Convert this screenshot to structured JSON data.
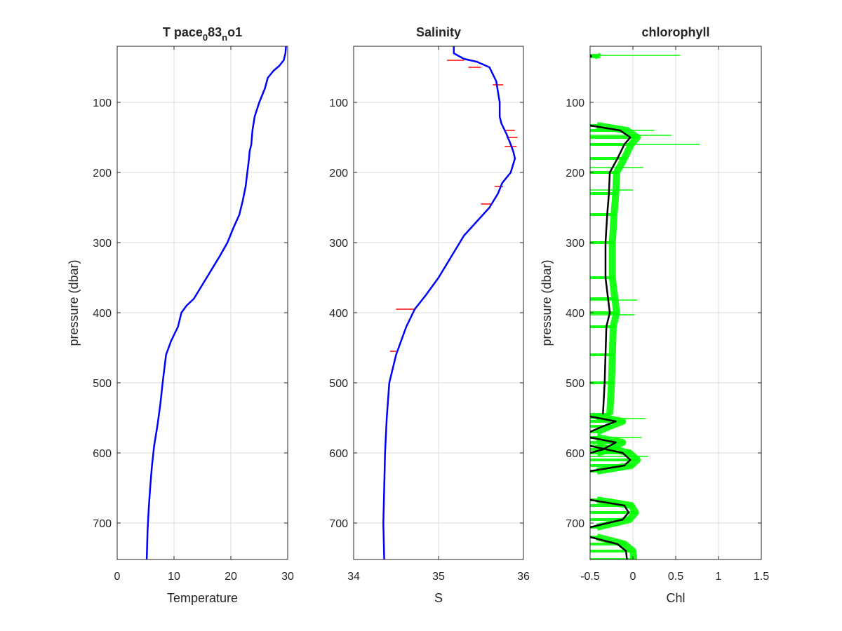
{
  "chart_data": [
    {
      "type": "line",
      "title": "T pace",
      "title_sub1": "0",
      "title_mid": "83",
      "title_sub2": "n",
      "title_end": "o1",
      "xlabel": "Temperature",
      "ylabel": "pressure (dbar)",
      "xlim": [
        0,
        30
      ],
      "ylim": [
        20,
        752
      ],
      "y_reversed": true,
      "grid": true,
      "xticks": [
        0,
        10,
        20,
        30
      ],
      "xtick_labels": [
        "0",
        "10",
        "20",
        "30"
      ],
      "yticks": [
        100,
        200,
        300,
        400,
        500,
        600,
        700
      ],
      "ytick_labels": [
        "100",
        "200",
        "300",
        "400",
        "500",
        "600",
        "700"
      ],
      "colors": {
        "temperature": "#0000ff"
      },
      "series": [
        {
          "x": [
            29.7,
            29.6,
            29.3,
            28.5,
            27.5,
            26.5,
            26.0,
            25.0,
            24.2,
            23.8,
            23.6,
            23.3,
            23.2,
            22.9,
            22.6,
            22.1,
            21.5,
            20.4,
            19.4,
            18.0,
            16.5,
            15.0,
            13.5,
            12.2,
            11.3,
            10.7,
            9.5,
            8.6,
            8.0,
            7.6,
            7.1,
            6.5,
            6.1,
            5.8,
            5.55,
            5.35,
            5.2
          ],
          "y": [
            20,
            30,
            40,
            48,
            55,
            65,
            80,
            100,
            120,
            140,
            160,
            170,
            180,
            200,
            220,
            240,
            260,
            280,
            300,
            320,
            340,
            360,
            380,
            390,
            400,
            420,
            440,
            460,
            500,
            530,
            560,
            590,
            620,
            650,
            680,
            710,
            752
          ]
        }
      ]
    },
    {
      "type": "line",
      "title": "Salinity",
      "xlabel": "S",
      "ylabel": "",
      "xlim": [
        34,
        36
      ],
      "ylim": [
        20,
        752
      ],
      "y_reversed": true,
      "grid": true,
      "xticks": [
        34,
        35,
        36
      ],
      "xtick_labels": [
        "34",
        "35",
        "36"
      ],
      "yticks": [
        100,
        200,
        300,
        400,
        500,
        600,
        700
      ],
      "ytick_labels": [
        "100",
        "200",
        "300",
        "400",
        "500",
        "600",
        "700"
      ],
      "colors": {
        "salinity": "#0000ff",
        "error": "#ff0000"
      },
      "series": [
        {
          "x": [
            35.18,
            35.18,
            35.3,
            35.45,
            35.6,
            35.68,
            35.72,
            35.72,
            35.74,
            35.8,
            35.85,
            35.88,
            35.9,
            35.85,
            35.75,
            35.7,
            35.6,
            35.45,
            35.3,
            35.15,
            35.0,
            34.85,
            34.72,
            34.62,
            34.5,
            34.42,
            34.39,
            34.37,
            34.36,
            34.35,
            34.36
          ],
          "y": [
            20,
            30,
            38,
            42,
            50,
            70,
            100,
            120,
            130,
            145,
            160,
            170,
            180,
            200,
            215,
            230,
            250,
            270,
            290,
            320,
            350,
            375,
            395,
            420,
            460,
            500,
            550,
            600,
            650,
            700,
            752
          ]
        }
      ],
      "error_bars": [
        {
          "y": 40,
          "x_lo": 35.1,
          "x_hi": 35.3
        },
        {
          "y": 50,
          "x_lo": 35.35,
          "x_hi": 35.5
        },
        {
          "y": 75,
          "x_lo": 35.64,
          "x_hi": 35.76
        },
        {
          "y": 140,
          "x_lo": 35.78,
          "x_hi": 35.9
        },
        {
          "y": 150,
          "x_lo": 35.8,
          "x_hi": 35.93
        },
        {
          "y": 163,
          "x_lo": 35.78,
          "x_hi": 35.92
        },
        {
          "y": 220,
          "x_lo": 35.66,
          "x_hi": 35.76
        },
        {
          "y": 245,
          "x_lo": 35.5,
          "x_hi": 35.62
        },
        {
          "y": 395,
          "x_lo": 34.5,
          "x_hi": 34.72
        },
        {
          "y": 455,
          "x_lo": 34.43,
          "x_hi": 34.5
        }
      ]
    },
    {
      "type": "line",
      "title": "chlorophyll",
      "xlabel": "Chl",
      "ylabel": "pressure (dbar)",
      "xlim": [
        -0.5,
        1.5
      ],
      "ylim": [
        20,
        752
      ],
      "y_reversed": true,
      "grid": true,
      "xticks": [
        -0.5,
        0,
        0.5,
        1,
        1.5
      ],
      "xtick_labels": [
        "-0.5",
        "0",
        "0.5",
        "1",
        "1.5"
      ],
      "yticks": [
        100,
        200,
        300,
        400,
        500,
        600,
        700
      ],
      "ytick_labels": [
        "100",
        "200",
        "300",
        "400",
        "500",
        "600",
        "700"
      ],
      "colors": {
        "mean": "#000000",
        "spread": "#00ff00"
      },
      "segments": [
        {
          "y": [
            33,
            35
          ],
          "x": [
            -0.5,
            -0.48
          ]
        },
        {
          "y": [
            133,
            140,
            150,
            160,
            180,
            200,
            230,
            260,
            300,
            350,
            380,
            400,
            420,
            460,
            500,
            545
          ],
          "x": [
            -0.5,
            -0.15,
            -0.03,
            -0.1,
            -0.18,
            -0.27,
            -0.28,
            -0.3,
            -0.32,
            -0.32,
            -0.29,
            -0.27,
            -0.31,
            -0.32,
            -0.33,
            -0.35
          ]
        },
        {
          "y": [
            548,
            555,
            562,
            570
          ],
          "x": [
            -0.5,
            -0.2,
            -0.35,
            -0.5
          ]
        },
        {
          "y": [
            578,
            585,
            595,
            600
          ],
          "x": [
            -0.5,
            -0.2,
            -0.35,
            -0.5
          ]
        },
        {
          "y": [
            590,
            600,
            610,
            618,
            626
          ],
          "x": [
            -0.5,
            -0.12,
            -0.03,
            -0.1,
            -0.5
          ]
        },
        {
          "y": [
            667,
            675,
            685,
            695,
            706
          ],
          "x": [
            -0.5,
            -0.1,
            -0.05,
            -0.12,
            -0.5
          ]
        },
        {
          "y": [
            720,
            730,
            740,
            752
          ],
          "x": [
            -0.5,
            -0.18,
            -0.08,
            -0.07
          ]
        }
      ],
      "spikes": [
        {
          "y": 33,
          "x": 0.55
        },
        {
          "y": 140,
          "x": 0.25
        },
        {
          "y": 147,
          "x": 0.45
        },
        {
          "y": 160,
          "x": 0.78
        },
        {
          "y": 193,
          "x": 0.12
        },
        {
          "y": 225,
          "x": 0.0
        },
        {
          "y": 382,
          "x": 0.05
        },
        {
          "y": 403,
          "x": 0.02
        },
        {
          "y": 551,
          "x": 0.15
        },
        {
          "y": 578,
          "x": 0.1
        },
        {
          "y": 605,
          "x": 0.18
        }
      ]
    }
  ]
}
